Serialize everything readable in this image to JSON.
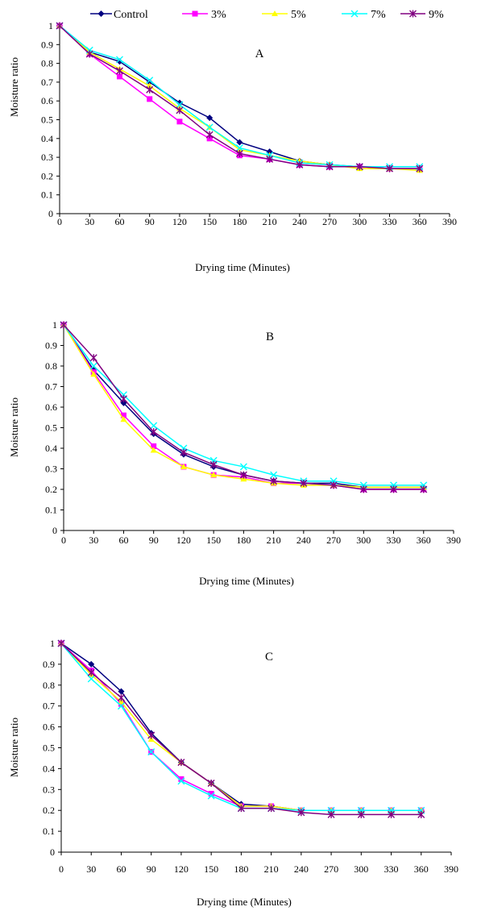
{
  "legend": {
    "position": "top",
    "items": [
      {
        "label": "Control",
        "color": "#000080",
        "marker": "diamond"
      },
      {
        "label": "3%",
        "color": "#ff00ff",
        "marker": "square"
      },
      {
        "label": "5%",
        "color": "#ffff00",
        "marker": "triangle"
      },
      {
        "label": "7%",
        "color": "#00ffff",
        "marker": "x"
      },
      {
        "label": "9%",
        "color": "#800080",
        "marker": "star"
      }
    ]
  },
  "chart_data": [
    {
      "type": "line",
      "panel_label": "A",
      "xlabel": "Drying time (Minutes)",
      "ylabel": "Moisture ratio",
      "xlim": [
        0,
        390
      ],
      "ylim": [
        0,
        1
      ],
      "xticks": [
        "0",
        "30",
        "60",
        "90",
        "120",
        "150",
        "180",
        "210",
        "240",
        "270",
        "300",
        "330",
        "360",
        "390"
      ],
      "yticks": [
        "0",
        "0.1",
        "0.2",
        "0.3",
        "0.4",
        "0.5",
        "0.6",
        "0.7",
        "0.8",
        "0.9",
        "1"
      ],
      "grid": false,
      "x": [
        0,
        30,
        60,
        90,
        120,
        150,
        180,
        210,
        240,
        270,
        300,
        330,
        360
      ],
      "series": [
        {
          "name": "Control",
          "values": [
            1,
            0.86,
            0.81,
            0.7,
            0.59,
            0.51,
            0.38,
            0.33,
            0.28,
            0.26,
            0.25,
            0.24,
            0.24
          ]
        },
        {
          "name": "3%",
          "values": [
            1,
            0.85,
            0.73,
            0.61,
            0.49,
            0.4,
            0.31,
            0.29,
            0.26,
            0.25,
            0.25,
            0.24,
            0.24
          ]
        },
        {
          "name": "5%",
          "values": [
            1,
            0.86,
            0.77,
            0.68,
            0.56,
            0.46,
            0.34,
            0.31,
            0.28,
            0.26,
            0.24,
            0.24,
            0.23
          ]
        },
        {
          "name": "7%",
          "values": [
            1,
            0.87,
            0.82,
            0.71,
            0.58,
            0.46,
            0.35,
            0.31,
            0.27,
            0.26,
            0.25,
            0.25,
            0.25
          ]
        },
        {
          "name": "9%",
          "values": [
            1,
            0.85,
            0.76,
            0.66,
            0.55,
            0.42,
            0.32,
            0.29,
            0.26,
            0.25,
            0.25,
            0.24,
            0.24
          ]
        }
      ]
    },
    {
      "type": "line",
      "panel_label": "B",
      "xlabel": "Drying time (Minutes)",
      "ylabel": "Moisture ratio",
      "xlim": [
        0,
        390
      ],
      "ylim": [
        0,
        1
      ],
      "xticks": [
        "0",
        "30",
        "60",
        "90",
        "120",
        "150",
        "180",
        "210",
        "240",
        "270",
        "300",
        "330",
        "360",
        "390"
      ],
      "yticks": [
        "0",
        "0.1",
        "0.2",
        "0.3",
        "0.4",
        "0.5",
        "0.6",
        "0.7",
        "0.8",
        "0.9",
        "1"
      ],
      "grid": false,
      "x": [
        0,
        30,
        60,
        90,
        120,
        150,
        180,
        210,
        240,
        270,
        300,
        330,
        360
      ],
      "series": [
        {
          "name": "Control",
          "values": [
            1,
            0.78,
            0.62,
            0.47,
            0.37,
            0.31,
            0.27,
            0.24,
            0.23,
            0.23,
            0.21,
            0.21,
            0.21
          ]
        },
        {
          "name": "3%",
          "values": [
            1,
            0.77,
            0.56,
            0.41,
            0.31,
            0.27,
            0.26,
            0.23,
            0.23,
            0.22,
            0.2,
            0.2,
            0.2
          ]
        },
        {
          "name": "5%",
          "values": [
            1,
            0.76,
            0.54,
            0.39,
            0.31,
            0.27,
            0.25,
            0.23,
            0.22,
            0.22,
            0.21,
            0.21,
            0.21
          ]
        },
        {
          "name": "7%",
          "values": [
            1,
            0.8,
            0.66,
            0.51,
            0.4,
            0.34,
            0.31,
            0.27,
            0.24,
            0.24,
            0.22,
            0.22,
            0.22
          ]
        },
        {
          "name": "9%",
          "values": [
            1,
            0.84,
            0.64,
            0.48,
            0.38,
            0.32,
            0.27,
            0.24,
            0.23,
            0.22,
            0.2,
            0.2,
            0.2
          ]
        }
      ]
    },
    {
      "type": "line",
      "panel_label": "C",
      "xlabel": "Drying time (Minutes)",
      "ylabel": "Moisture ratio",
      "xlim": [
        0,
        390
      ],
      "ylim": [
        0,
        1
      ],
      "xticks": [
        "0",
        "30",
        "60",
        "90",
        "120",
        "150",
        "180",
        "210",
        "240",
        "270",
        "300",
        "330",
        "360",
        "390"
      ],
      "yticks": [
        "0",
        "0.1",
        "0.2",
        "0.3",
        "0.4",
        "0.5",
        "0.6",
        "0.7",
        "0.8",
        "0.9",
        "1"
      ],
      "grid": false,
      "x": [
        0,
        30,
        60,
        90,
        120,
        150,
        180,
        210,
        240,
        270,
        300,
        330,
        360
      ],
      "series": [
        {
          "name": "Control",
          "values": [
            1,
            0.9,
            0.77,
            0.57,
            0.43,
            0.33,
            0.23,
            0.22,
            0.2,
            0.2,
            0.2,
            0.2,
            0.2
          ]
        },
        {
          "name": "3%",
          "values": [
            1,
            0.87,
            0.71,
            0.48,
            0.35,
            0.28,
            0.22,
            0.22,
            0.2,
            0.2,
            0.2,
            0.2,
            0.2
          ]
        },
        {
          "name": "5%",
          "values": [
            1,
            0.85,
            0.72,
            0.54,
            0.43,
            0.33,
            0.22,
            0.22,
            0.2,
            0.2,
            0.2,
            0.2,
            0.2
          ]
        },
        {
          "name": "7%",
          "values": [
            1,
            0.83,
            0.7,
            0.48,
            0.34,
            0.27,
            0.21,
            0.21,
            0.2,
            0.2,
            0.2,
            0.2,
            0.2
          ]
        },
        {
          "name": "9%",
          "values": [
            1,
            0.86,
            0.74,
            0.56,
            0.43,
            0.33,
            0.21,
            0.21,
            0.19,
            0.18,
            0.18,
            0.18,
            0.18
          ]
        }
      ]
    }
  ]
}
